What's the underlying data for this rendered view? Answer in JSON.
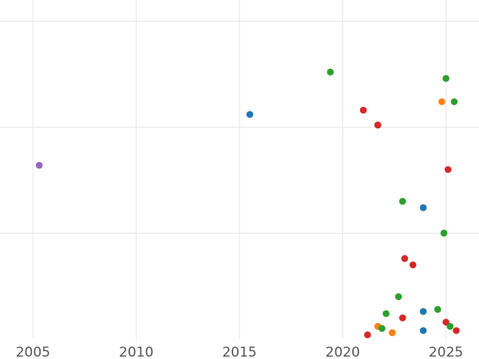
{
  "chart_data": {
    "type": "scatter",
    "title": "",
    "xlabel": "",
    "ylabel": "",
    "xlim": [
      2003.4,
      2026.6
    ],
    "ylim": [
      0,
      16
    ],
    "x_ticks": [
      2005,
      2010,
      2015,
      2020,
      2025
    ],
    "x_tick_labels": [
      "2005",
      "2010",
      "2015",
      "2020",
      "2025"
    ],
    "y_gridlines": [
      5,
      10,
      15
    ],
    "grid": true,
    "legend": "none",
    "colors": {
      "blue": "#1f77b4",
      "orange": "#ff7f0e",
      "green": "#2ca02c",
      "red": "#d62728",
      "purple": "#9467bd"
    },
    "points": [
      {
        "x": 2005.3,
        "y": 8.2,
        "color": "purple"
      },
      {
        "x": 2015.5,
        "y": 10.6,
        "color": "blue"
      },
      {
        "x": 2019.4,
        "y": 12.6,
        "color": "green"
      },
      {
        "x": 2021.0,
        "y": 10.8,
        "color": "red"
      },
      {
        "x": 2021.7,
        "y": 10.1,
        "color": "green"
      },
      {
        "x": 2021.7,
        "y": 10.1,
        "color": "red"
      },
      {
        "x": 2021.2,
        "y": 0.2,
        "color": "red"
      },
      {
        "x": 2021.7,
        "y": 0.6,
        "color": "orange"
      },
      {
        "x": 2021.9,
        "y": 0.5,
        "color": "green"
      },
      {
        "x": 2022.1,
        "y": 1.2,
        "color": "green"
      },
      {
        "x": 2022.4,
        "y": 0.3,
        "color": "orange"
      },
      {
        "x": 2022.7,
        "y": 2.0,
        "color": "green"
      },
      {
        "x": 2022.9,
        "y": 1.0,
        "color": "red"
      },
      {
        "x": 2022.9,
        "y": 6.5,
        "color": "green"
      },
      {
        "x": 2023.0,
        "y": 3.8,
        "color": "red"
      },
      {
        "x": 2023.4,
        "y": 3.5,
        "color": "red"
      },
      {
        "x": 2023.9,
        "y": 6.2,
        "color": "blue"
      },
      {
        "x": 2023.9,
        "y": 1.3,
        "color": "blue"
      },
      {
        "x": 2023.9,
        "y": 0.4,
        "color": "blue"
      },
      {
        "x": 2024.6,
        "y": 1.4,
        "color": "green"
      },
      {
        "x": 2024.8,
        "y": 11.2,
        "color": "orange"
      },
      {
        "x": 2024.9,
        "y": 5.0,
        "color": "green"
      },
      {
        "x": 2025.0,
        "y": 12.3,
        "color": "green"
      },
      {
        "x": 2025.0,
        "y": 0.8,
        "color": "red"
      },
      {
        "x": 2025.1,
        "y": 8.0,
        "color": "red"
      },
      {
        "x": 2025.2,
        "y": 0.6,
        "color": "green"
      },
      {
        "x": 2025.4,
        "y": 11.2,
        "color": "green"
      },
      {
        "x": 2025.5,
        "y": 0.4,
        "color": "red"
      }
    ]
  }
}
